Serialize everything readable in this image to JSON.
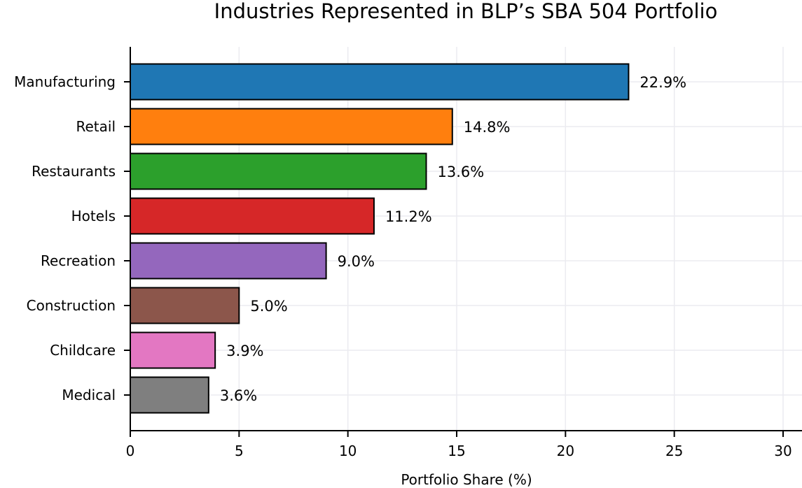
{
  "chart_data": {
    "type": "bar",
    "orientation": "horizontal",
    "title": "Industries Represented in BLP’s SBA 504 Portfolio",
    "xlabel": "Portfolio Share (%)",
    "ylabel": "",
    "categories": [
      "Manufacturing",
      "Retail",
      "Restaurants",
      "Hotels",
      "Recreation",
      "Construction",
      "Childcare",
      "Medical"
    ],
    "values": [
      22.9,
      14.8,
      13.6,
      11.2,
      9.0,
      5.0,
      3.9,
      3.6
    ],
    "value_labels": [
      "22.9%",
      "14.8%",
      "13.6%",
      "11.2%",
      "9.0%",
      "5.0%",
      "3.9%",
      "3.6%"
    ],
    "colors": [
      "#1f77b4",
      "#ff7f0e",
      "#2ca02c",
      "#d62728",
      "#9467bd",
      "#8c564b",
      "#e377c2",
      "#7f7f7f"
    ],
    "xlim": [
      0,
      30.9
    ],
    "xticks": [
      0,
      5,
      10,
      15,
      20,
      25,
      30
    ],
    "xtick_labels": [
      "0",
      "5",
      "10",
      "15",
      "20",
      "25",
      "30"
    ],
    "grid": true,
    "legend": "none"
  }
}
